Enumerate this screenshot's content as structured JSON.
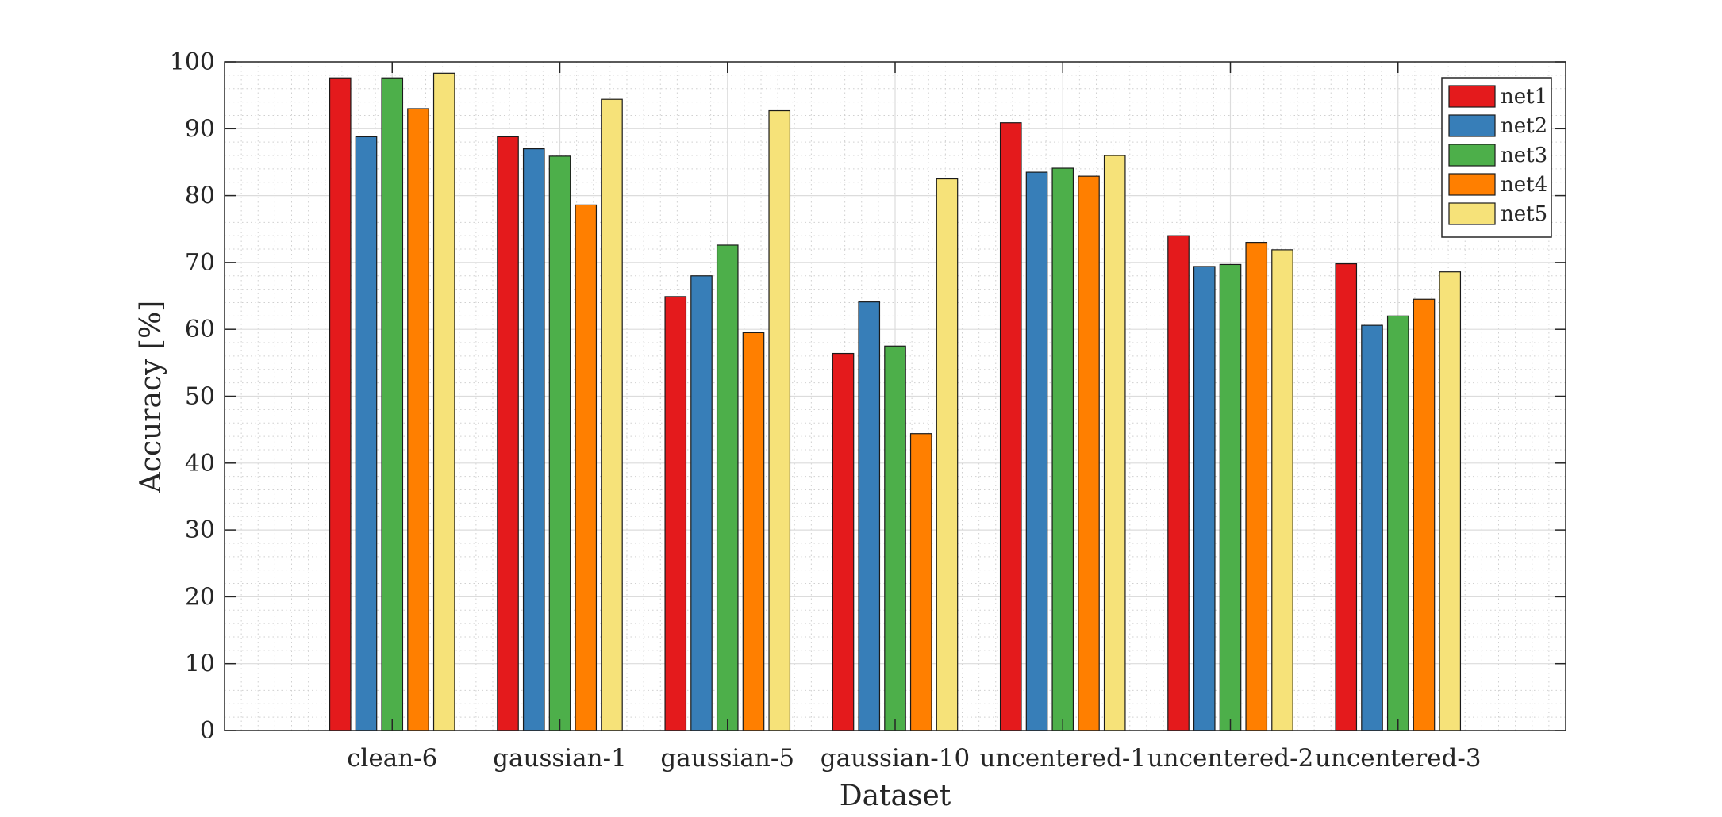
{
  "chart_data": {
    "type": "bar",
    "title": "",
    "xlabel": "Dataset",
    "ylabel": "Accuracy [%]",
    "ylim": [
      0,
      100
    ],
    "yticks": [
      0,
      10,
      20,
      30,
      40,
      50,
      60,
      70,
      80,
      90,
      100
    ],
    "grid": true,
    "minor_grid": true,
    "legend_position": "top-right",
    "categories": [
      "clean-6",
      "gaussian-1",
      "gaussian-5",
      "gaussian-10",
      "uncentered-1",
      "uncentered-2",
      "uncentered-3"
    ],
    "series": [
      {
        "name": "net1",
        "color": "#e41a1c",
        "values": [
          97.6,
          88.8,
          64.9,
          56.4,
          90.9,
          74.0,
          69.8
        ]
      },
      {
        "name": "net2",
        "color": "#377eb8",
        "values": [
          88.8,
          87.0,
          68.0,
          64.1,
          83.5,
          69.4,
          60.6
        ]
      },
      {
        "name": "net3",
        "color": "#4daf4a",
        "values": [
          97.6,
          85.9,
          72.6,
          57.5,
          84.1,
          69.7,
          62.0
        ]
      },
      {
        "name": "net4",
        "color": "#ff7f00",
        "values": [
          93.0,
          78.6,
          59.5,
          44.4,
          82.9,
          73.0,
          64.5
        ]
      },
      {
        "name": "net5",
        "color": "#f6e279",
        "values": [
          98.3,
          94.4,
          92.7,
          82.5,
          86.0,
          71.9,
          68.6
        ]
      }
    ]
  }
}
